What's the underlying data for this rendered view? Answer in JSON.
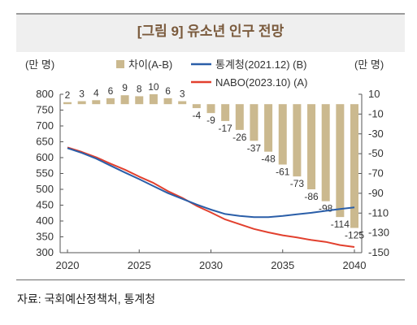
{
  "figure": {
    "title": "[그림 9] 유소년 인구 전망",
    "source": "자료: 국회예산정책처, 통계청",
    "left_unit": "(만 명)",
    "right_unit": "(만 명)"
  },
  "chart_data": {
    "type": "bar+line",
    "x": [
      2020,
      2021,
      2022,
      2023,
      2024,
      2025,
      2026,
      2027,
      2028,
      2029,
      2030,
      2031,
      2032,
      2033,
      2034,
      2035,
      2036,
      2037,
      2038,
      2039,
      2040
    ],
    "x_ticks": [
      2020,
      2025,
      2030,
      2035,
      2040
    ],
    "left_axis": {
      "ylim": [
        300,
        800
      ],
      "ticks": [
        300,
        350,
        400,
        450,
        500,
        550,
        600,
        650,
        700,
        750,
        800
      ]
    },
    "right_axis": {
      "ylim": [
        -150,
        10
      ],
      "ticks": [
        -150,
        -130,
        -110,
        -90,
        -70,
        -50,
        -30,
        -10,
        10
      ]
    },
    "legend_position": "top",
    "series": [
      {
        "name": "차이(A-B)",
        "kind": "bar",
        "axis": "right",
        "color": "#cbb98f",
        "values": [
          2,
          3,
          4,
          6,
          9,
          8,
          10,
          6,
          3,
          -4,
          -9,
          -17,
          -26,
          -37,
          -48,
          -61,
          -73,
          -86,
          -98,
          -114,
          -125
        ],
        "labels": [
          "2",
          "3",
          "4",
          "6",
          "9",
          "8",
          "10",
          "6",
          "3",
          "-4",
          "-9",
          "-17",
          "-26",
          "-37",
          "-48",
          "-61",
          "-73",
          "-86",
          "-98",
          "-114",
          "-125"
        ]
      },
      {
        "name": "통계청(2021.12) (B)",
        "kind": "line",
        "axis": "left",
        "color": "#2a5ea8",
        "values": [
          630,
          615,
          597,
          575,
          553,
          532,
          510,
          488,
          470,
          452,
          436,
          422,
          416,
          412,
          412,
          416,
          421,
          426,
          432,
          438,
          443
        ]
      },
      {
        "name": "NABO(2023.10) (A)",
        "kind": "line",
        "axis": "left",
        "color": "#e2402e",
        "values": [
          632,
          618,
          601,
          581,
          562,
          540,
          520,
          494,
          473,
          448,
          427,
          405,
          390,
          375,
          364,
          355,
          348,
          340,
          334,
          324,
          318
        ]
      }
    ]
  }
}
